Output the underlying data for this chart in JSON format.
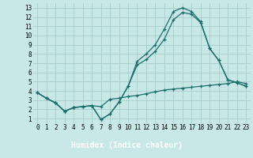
{
  "background_color": "#c8e8e8",
  "grid_color": "#a8cccc",
  "line_color": "#1a6e6a",
  "marker": "+",
  "markersize": 3.5,
  "linewidth": 0.9,
  "xlabel": "Humidex (Indice chaleur)",
  "xlabel_fontsize": 7,
  "tick_fontsize": 5.5,
  "xlim_min": -0.5,
  "xlim_max": 23.5,
  "ylim_min": 0.5,
  "ylim_max": 13.5,
  "xticks": [
    0,
    1,
    2,
    3,
    4,
    5,
    6,
    7,
    8,
    9,
    10,
    11,
    12,
    13,
    14,
    15,
    16,
    17,
    18,
    19,
    20,
    21,
    22,
    23
  ],
  "yticks": [
    1,
    2,
    3,
    4,
    5,
    6,
    7,
    8,
    9,
    10,
    11,
    12,
    13
  ],
  "line1_x": [
    0,
    1,
    2,
    3,
    4,
    5,
    6,
    7,
    8,
    9,
    10,
    11,
    12,
    13,
    14,
    15,
    16,
    17,
    18,
    19,
    20,
    21,
    22,
    23
  ],
  "line1_y": [
    3.8,
    3.2,
    2.7,
    1.8,
    2.2,
    2.3,
    2.4,
    2.3,
    3.1,
    3.2,
    3.4,
    3.5,
    3.7,
    3.9,
    4.1,
    4.2,
    4.3,
    4.4,
    4.5,
    4.6,
    4.7,
    4.8,
    5.0,
    4.8
  ],
  "line2_x": [
    0,
    1,
    2,
    3,
    4,
    5,
    6,
    7,
    8,
    9,
    10,
    11,
    12,
    13,
    14,
    15,
    16,
    17,
    18,
    19,
    20,
    21,
    22,
    23
  ],
  "line2_y": [
    3.8,
    3.2,
    2.7,
    1.8,
    2.2,
    2.3,
    2.4,
    0.9,
    1.5,
    2.8,
    4.5,
    6.8,
    7.4,
    8.3,
    9.6,
    11.7,
    12.5,
    12.3,
    11.4,
    8.6,
    7.3,
    5.2,
    4.9,
    4.5
  ],
  "line3_x": [
    0,
    1,
    2,
    3,
    4,
    5,
    6,
    7,
    8,
    9,
    10,
    11,
    12,
    13,
    14,
    15,
    16,
    17,
    18,
    19,
    20,
    21,
    22,
    23
  ],
  "line3_y": [
    3.8,
    3.2,
    2.7,
    1.8,
    2.2,
    2.3,
    2.4,
    0.9,
    1.5,
    2.8,
    4.5,
    7.2,
    8.0,
    9.0,
    10.7,
    12.6,
    13.0,
    12.6,
    11.5,
    8.6,
    7.3,
    5.2,
    4.9,
    4.5
  ],
  "xlabel_bg": "#2a7a7a",
  "xlabel_color": "#ffffff"
}
